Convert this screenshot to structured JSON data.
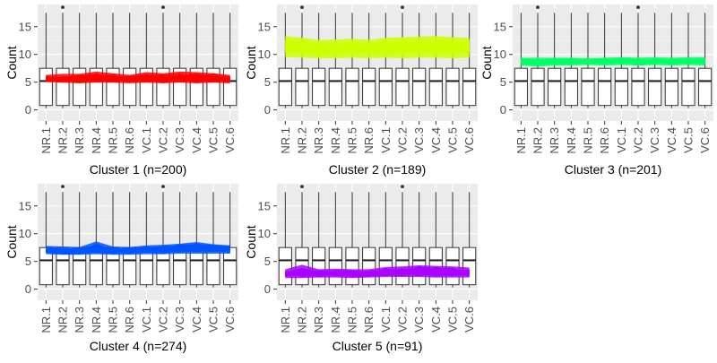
{
  "chart_data": [
    {
      "type": "box",
      "title": "",
      "xlabel": "Cluster 1 (n=200)",
      "ylabel": "Count",
      "categories": [
        "NR.1",
        "NR.2",
        "NR.3",
        "NR.4",
        "NR.5",
        "NR.6",
        "VC.1",
        "VC.2",
        "VC.3",
        "VC.4",
        "VC.5",
        "VC.6"
      ],
      "y_ticks": [
        0,
        5,
        10,
        15
      ],
      "ylim": [
        -2,
        19
      ],
      "grid": true,
      "box_stats": {
        "whisker_low": 0.3,
        "q1": 0.8,
        "median": 5.2,
        "q3": 7.5,
        "whisker_high": 17.5
      },
      "outliers": [
        {
          "category": "NR.2",
          "value": 18.5
        },
        {
          "category": "VC.2",
          "value": 18.5
        }
      ],
      "cluster_band": {
        "color": "#ff0000",
        "lines": 200,
        "low": [
          5.0,
          4.9,
          4.8,
          4.9,
          4.9,
          4.8,
          4.9,
          4.8,
          4.9,
          4.8,
          4.9,
          4.8
        ],
        "mid": [
          5.6,
          5.5,
          5.5,
          5.6,
          5.6,
          5.5,
          5.6,
          5.6,
          5.6,
          5.5,
          5.6,
          5.5
        ],
        "high": [
          6.3,
          6.5,
          6.5,
          6.9,
          6.6,
          6.3,
          6.8,
          6.6,
          6.9,
          6.8,
          6.6,
          6.3
        ]
      }
    },
    {
      "type": "box",
      "title": "",
      "xlabel": "Cluster 2 (n=189)",
      "ylabel": "Count",
      "categories": [
        "NR.1",
        "NR.2",
        "NR.3",
        "NR.4",
        "NR.5",
        "NR.6",
        "VC.1",
        "VC.2",
        "VC.3",
        "VC.4",
        "VC.5",
        "VC.6"
      ],
      "y_ticks": [
        0,
        5,
        10,
        15
      ],
      "ylim": [
        -2,
        19
      ],
      "grid": true,
      "box_stats": {
        "whisker_low": 0.3,
        "q1": 0.8,
        "median": 5.2,
        "q3": 7.5,
        "whisker_high": 17.5
      },
      "outliers": [
        {
          "category": "NR.2",
          "value": 18.5
        },
        {
          "category": "VC.2",
          "value": 18.5
        }
      ],
      "cluster_band": {
        "color": "#ccff00",
        "lines": 189,
        "low": [
          9.5,
          9.4,
          9.3,
          9.3,
          9.4,
          9.3,
          9.4,
          9.3,
          9.4,
          9.4,
          9.3,
          9.4
        ],
        "mid": [
          11.3,
          11.2,
          11.0,
          11.1,
          11.2,
          11.0,
          11.3,
          11.4,
          11.4,
          11.5,
          11.4,
          11.3
        ],
        "high": [
          13.3,
          13.0,
          12.6,
          12.7,
          12.8,
          12.6,
          13.0,
          13.1,
          13.2,
          13.3,
          13.1,
          13.0
        ]
      }
    },
    {
      "type": "box",
      "title": "",
      "xlabel": "Cluster 3 (n=201)",
      "ylabel": "Count",
      "categories": [
        "NR.1",
        "NR.2",
        "NR.3",
        "NR.4",
        "NR.5",
        "NR.6",
        "VC.1",
        "VC.2",
        "VC.3",
        "VC.4",
        "VC.5",
        "VC.6"
      ],
      "y_ticks": [
        0,
        5,
        10,
        15
      ],
      "ylim": [
        -2,
        19
      ],
      "grid": true,
      "box_stats": {
        "whisker_low": 0.3,
        "q1": 0.8,
        "median": 5.2,
        "q3": 7.5,
        "whisker_high": 17.5
      },
      "outliers": [
        {
          "category": "NR.2",
          "value": 18.5
        },
        {
          "category": "VC.2",
          "value": 18.5
        }
      ],
      "cluster_band": {
        "color": "#00ff66",
        "lines": 201,
        "low": [
          8.0,
          7.8,
          8.0,
          8.0,
          8.1,
          8.0,
          8.1,
          8.0,
          8.1,
          8.0,
          8.1,
          8.0
        ],
        "mid": [
          8.7,
          8.6,
          8.7,
          8.7,
          8.7,
          8.7,
          8.8,
          8.7,
          8.8,
          8.7,
          8.8,
          8.7
        ],
        "high": [
          9.4,
          9.4,
          9.4,
          9.4,
          9.3,
          9.4,
          9.5,
          9.4,
          9.5,
          9.4,
          9.5,
          9.5
        ]
      }
    },
    {
      "type": "box",
      "title": "",
      "xlabel": "Cluster 4 (n=274)",
      "ylabel": "Count",
      "categories": [
        "NR.1",
        "NR.2",
        "NR.3",
        "NR.4",
        "NR.5",
        "NR.6",
        "VC.1",
        "VC.2",
        "VC.3",
        "VC.4",
        "VC.5",
        "VC.6"
      ],
      "y_ticks": [
        0,
        5,
        10,
        15
      ],
      "ylim": [
        -2,
        19
      ],
      "grid": true,
      "box_stats": {
        "whisker_low": 0.3,
        "q1": 0.8,
        "median": 5.2,
        "q3": 7.5,
        "whisker_high": 17.5
      },
      "outliers": [
        {
          "category": "NR.2",
          "value": 18.5
        },
        {
          "category": "VC.2",
          "value": 18.5
        }
      ],
      "cluster_band": {
        "color": "#0055ff",
        "lines": 274,
        "low": [
          6.3,
          6.2,
          6.2,
          6.3,
          6.2,
          6.2,
          6.3,
          6.3,
          6.4,
          6.4,
          6.4,
          6.4
        ],
        "mid": [
          7.0,
          6.9,
          6.9,
          7.0,
          6.9,
          6.9,
          7.1,
          7.1,
          7.3,
          7.4,
          7.3,
          7.2
        ],
        "high": [
          7.8,
          7.7,
          7.6,
          8.6,
          7.7,
          7.6,
          7.9,
          8.0,
          8.2,
          8.5,
          8.1,
          7.9
        ]
      }
    },
    {
      "type": "box",
      "title": "",
      "xlabel": "Cluster 5 (n=91)",
      "ylabel": "Count",
      "categories": [
        "NR.1",
        "NR.2",
        "NR.3",
        "NR.4",
        "NR.5",
        "NR.6",
        "VC.1",
        "VC.2",
        "VC.3",
        "VC.4",
        "VC.5",
        "VC.6"
      ],
      "y_ticks": [
        0,
        5,
        10,
        15
      ],
      "ylim": [
        -2,
        19
      ],
      "grid": true,
      "box_stats": {
        "whisker_low": 0.3,
        "q1": 0.8,
        "median": 5.2,
        "q3": 7.5,
        "whisker_high": 17.5
      },
      "outliers": [
        {
          "category": "NR.2",
          "value": 18.5
        },
        {
          "category": "VC.2",
          "value": 18.5
        }
      ],
      "cluster_band": {
        "color": "#aa00ff",
        "lines": 91,
        "low": [
          2.0,
          2.0,
          2.1,
          2.1,
          2.0,
          2.1,
          2.2,
          2.2,
          2.2,
          2.1,
          2.1,
          2.1
        ],
        "mid": [
          2.8,
          3.0,
          2.8,
          2.9,
          2.8,
          2.8,
          3.0,
          3.0,
          3.2,
          3.1,
          3.0,
          3.0
        ],
        "high": [
          3.6,
          4.4,
          3.6,
          3.7,
          3.6,
          3.6,
          4.0,
          4.1,
          4.3,
          4.2,
          4.1,
          3.9
        ]
      }
    }
  ]
}
